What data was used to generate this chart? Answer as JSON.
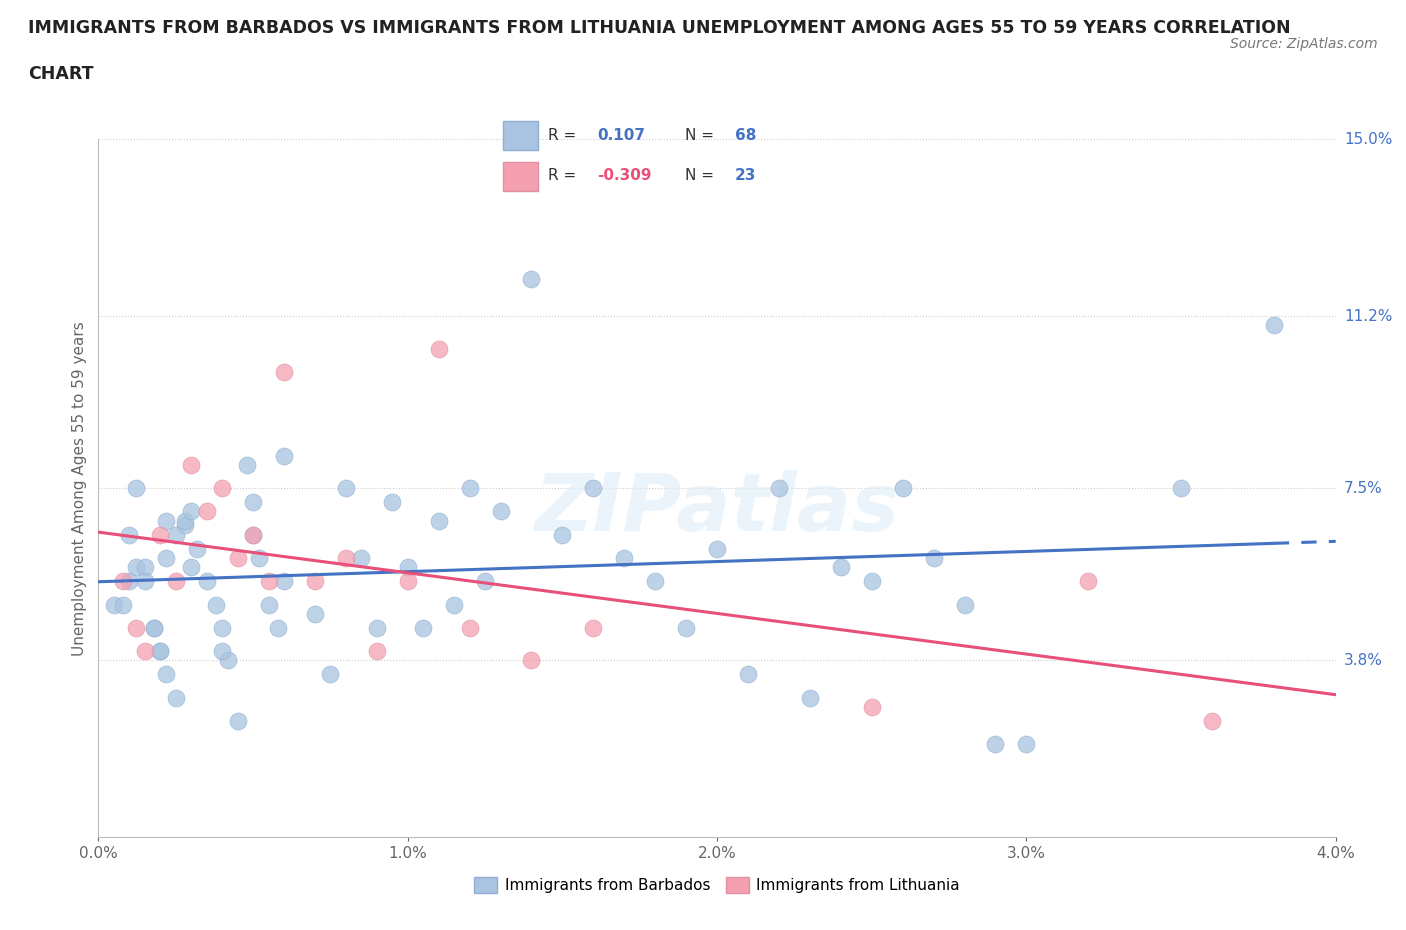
{
  "title_line1": "IMMIGRANTS FROM BARBADOS VS IMMIGRANTS FROM LITHUANIA UNEMPLOYMENT AMONG AGES 55 TO 59 YEARS CORRELATION",
  "title_line2": "CHART",
  "source": "Source: ZipAtlas.com",
  "ylabel": "Unemployment Among Ages 55 to 59 years",
  "xlim": [
    0.0,
    4.0
  ],
  "ylim": [
    0.0,
    15.0
  ],
  "yticks": [
    3.8,
    7.5,
    11.2,
    15.0
  ],
  "ytick_labels": [
    "3.8%",
    "7.5%",
    "11.2%",
    "15.0%"
  ],
  "xticks": [
    0.0,
    1.0,
    2.0,
    3.0,
    4.0
  ],
  "xtick_labels": [
    "0.0%",
    "1.0%",
    "2.0%",
    "3.0%",
    "4.0%"
  ],
  "barbados_R": 0.107,
  "barbados_N": 68,
  "lithuania_R": -0.309,
  "lithuania_N": 23,
  "barbados_color": "#a8c4e0",
  "lithuania_color": "#f4a0b0",
  "barbados_line_color": "#4472c4",
  "lithuania_line_color": "#e8507a",
  "watermark": "ZIPatlas",
  "legend_label_barbados": "Immigrants from Barbados",
  "legend_label_lithuania": "Immigrants from Lithuania",
  "barbados_x": [
    0.05,
    0.08,
    0.1,
    0.12,
    0.15,
    0.18,
    0.2,
    0.22,
    0.25,
    0.28,
    0.1,
    0.15,
    0.18,
    0.2,
    0.22,
    0.25,
    0.28,
    0.3,
    0.32,
    0.35,
    0.38,
    0.4,
    0.42,
    0.45,
    0.48,
    0.5,
    0.52,
    0.55,
    0.58,
    0.6,
    0.12,
    0.22,
    0.3,
    0.4,
    0.5,
    0.6,
    0.7,
    0.75,
    0.8,
    0.85,
    0.9,
    0.95,
    1.0,
    1.05,
    1.1,
    1.15,
    1.2,
    1.25,
    1.3,
    1.4,
    1.5,
    1.6,
    1.7,
    1.8,
    1.9,
    2.0,
    2.1,
    2.2,
    2.3,
    2.4,
    2.5,
    2.6,
    2.7,
    2.8,
    2.9,
    3.0,
    3.5,
    3.8
  ],
  "barbados_y": [
    5.0,
    5.0,
    5.5,
    5.8,
    5.8,
    4.5,
    4.0,
    6.0,
    6.5,
    6.7,
    6.5,
    5.5,
    4.5,
    4.0,
    3.5,
    3.0,
    6.8,
    7.0,
    6.2,
    5.5,
    5.0,
    4.5,
    3.8,
    2.5,
    8.0,
    7.2,
    6.0,
    5.0,
    4.5,
    8.2,
    7.5,
    6.8,
    5.8,
    4.0,
    6.5,
    5.5,
    4.8,
    3.5,
    7.5,
    6.0,
    4.5,
    7.2,
    5.8,
    4.5,
    6.8,
    5.0,
    7.5,
    5.5,
    7.0,
    12.0,
    6.5,
    7.5,
    6.0,
    5.5,
    4.5,
    6.2,
    3.5,
    7.5,
    3.0,
    5.8,
    5.5,
    7.5,
    6.0,
    5.0,
    2.0,
    2.0,
    7.5,
    11.0
  ],
  "lithuania_x": [
    0.08,
    0.12,
    0.15,
    0.2,
    0.25,
    0.3,
    0.35,
    0.4,
    0.45,
    0.5,
    0.55,
    0.6,
    0.7,
    0.8,
    0.9,
    1.0,
    1.1,
    1.2,
    1.4,
    1.6,
    2.5,
    3.2,
    3.6
  ],
  "lithuania_y": [
    5.5,
    4.5,
    4.0,
    6.5,
    5.5,
    8.0,
    7.0,
    7.5,
    6.0,
    6.5,
    5.5,
    10.0,
    5.5,
    6.0,
    4.0,
    5.5,
    10.5,
    4.5,
    3.8,
    4.5,
    2.8,
    5.5,
    2.5
  ],
  "barbados_trend_x0": 0.0,
  "barbados_trend_x1": 4.0,
  "barbados_trend_solid_end": 3.8,
  "lithuania_trend_x0": 0.0,
  "lithuania_trend_x1": 4.0
}
